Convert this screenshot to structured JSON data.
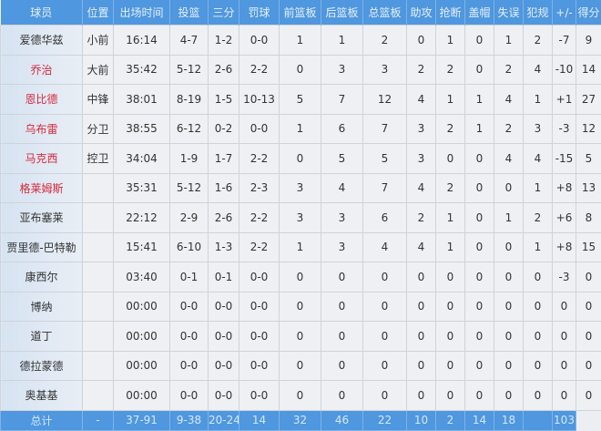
{
  "headers": [
    "球员",
    "位置",
    "出场时间",
    "投篮",
    "三分",
    "罚球",
    "前篮板",
    "后篮板",
    "总篮板",
    "助攻",
    "抢断",
    "盖帽",
    "失误",
    "犯规",
    "+/-",
    "得分"
  ],
  "colors": {
    "header_bg": "#4f97de",
    "starter_name": "#d8283c"
  },
  "players": [
    {
      "name": "爱德华兹",
      "highlight": false,
      "cells": [
        "小前",
        "16:14",
        "4-7",
        "1-2",
        "0-0",
        "1",
        "1",
        "2",
        "0",
        "1",
        "0",
        "1",
        "2",
        "-7",
        "9"
      ]
    },
    {
      "name": "乔治",
      "highlight": true,
      "cells": [
        "大前",
        "35:42",
        "5-12",
        "2-6",
        "2-2",
        "0",
        "3",
        "3",
        "2",
        "2",
        "0",
        "2",
        "4",
        "-10",
        "14"
      ]
    },
    {
      "name": "恩比德",
      "highlight": true,
      "cells": [
        "中锋",
        "38:01",
        "8-19",
        "1-5",
        "10-13",
        "5",
        "7",
        "12",
        "4",
        "1",
        "1",
        "4",
        "1",
        "+1",
        "27"
      ]
    },
    {
      "name": "乌布雷",
      "highlight": true,
      "cells": [
        "分卫",
        "38:55",
        "6-12",
        "0-2",
        "0-0",
        "1",
        "6",
        "7",
        "3",
        "2",
        "1",
        "2",
        "3",
        "-3",
        "12"
      ]
    },
    {
      "name": "马克西",
      "highlight": true,
      "cells": [
        "控卫",
        "34:04",
        "1-9",
        "1-7",
        "2-2",
        "0",
        "5",
        "5",
        "3",
        "0",
        "0",
        "4",
        "4",
        "-15",
        "5"
      ]
    },
    {
      "name": "格莱姆斯",
      "highlight": true,
      "cells": [
        "",
        "35:31",
        "5-12",
        "1-6",
        "2-3",
        "3",
        "4",
        "7",
        "4",
        "2",
        "0",
        "0",
        "1",
        "+8",
        "13"
      ]
    },
    {
      "name": "亚布塞莱",
      "highlight": false,
      "cells": [
        "",
        "22:12",
        "2-9",
        "2-6",
        "2-2",
        "3",
        "3",
        "6",
        "2",
        "1",
        "0",
        "1",
        "2",
        "+6",
        "8"
      ]
    },
    {
      "name": "贾里德-巴特勒",
      "highlight": false,
      "cells": [
        "",
        "15:41",
        "6-10",
        "1-3",
        "2-2",
        "1",
        "3",
        "4",
        "4",
        "1",
        "0",
        "0",
        "1",
        "+8",
        "15"
      ]
    },
    {
      "name": "康西尔",
      "highlight": false,
      "cells": [
        "",
        "03:40",
        "0-1",
        "0-1",
        "0-0",
        "0",
        "0",
        "0",
        "0",
        "0",
        "0",
        "0",
        "0",
        "-3",
        "0"
      ]
    },
    {
      "name": "博纳",
      "highlight": false,
      "cells": [
        "",
        "00:00",
        "0-0",
        "0-0",
        "0-0",
        "0",
        "0",
        "0",
        "0",
        "0",
        "0",
        "0",
        "0",
        "0",
        "0"
      ]
    },
    {
      "name": "道丁",
      "highlight": false,
      "cells": [
        "",
        "00:00",
        "0-0",
        "0-0",
        "0-0",
        "0",
        "0",
        "0",
        "0",
        "0",
        "0",
        "0",
        "0",
        "0",
        "0"
      ]
    },
    {
      "name": "德拉蒙德",
      "highlight": false,
      "cells": [
        "",
        "00:00",
        "0-0",
        "0-0",
        "0-0",
        "0",
        "0",
        "0",
        "0",
        "0",
        "0",
        "0",
        "0",
        "0",
        "0"
      ]
    },
    {
      "name": "奥基基",
      "highlight": false,
      "cells": [
        "",
        "00:00",
        "0-0",
        "0-0",
        "0-0",
        "0",
        "0",
        "0",
        "0",
        "0",
        "0",
        "0",
        "0",
        "0",
        "0"
      ]
    }
  ],
  "total": {
    "label": "总计",
    "cells": [
      "",
      "-",
      "37-91",
      "9-38",
      "20-24",
      "14",
      "32",
      "46",
      "22",
      "10",
      "2",
      "14",
      "18",
      "",
      "103"
    ]
  }
}
